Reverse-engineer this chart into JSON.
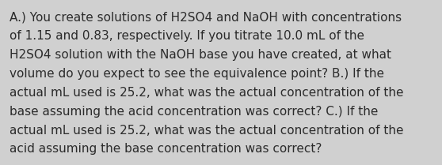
{
  "lines": [
    "A.) You create solutions of H2SO4 and NaOH with concentrations",
    "of 1.15 and 0.83, respectively. If you titrate 10.0 mL of the",
    "H2SO4 solution with the NaOH base you have created, at what",
    "volume do you expect to see the equivalence point? B.) If the",
    "actual mL used is 25.2, what was the actual concentration of the",
    "base assuming the acid concentration was correct? C.) If the",
    "actual mL used is 25.2, what was the actual concentration of the",
    "acid assuming the base concentration was correct?"
  ],
  "background_color": "#d0d0d0",
  "text_color": "#2b2b2b",
  "font_size": 11.0,
  "fig_width": 5.58,
  "fig_height": 2.09,
  "dpi": 100
}
